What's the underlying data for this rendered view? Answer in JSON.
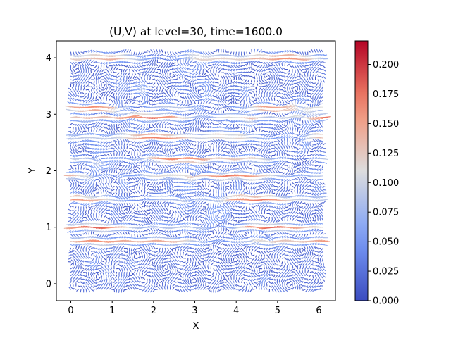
{
  "chart_data": {
    "type": "quiver",
    "title": "(U,V) at level=30, time=1600.0",
    "xlabel": "X",
    "ylabel": "Y",
    "xlim": [
      -0.35,
      6.4
    ],
    "ylim": [
      -0.3,
      4.3
    ],
    "xticks": [
      0,
      1,
      2,
      3,
      4,
      5,
      6
    ],
    "yticks": [
      0,
      1,
      2,
      3,
      4
    ],
    "grid": false,
    "field": {
      "x_range": [
        0,
        6.1
      ],
      "y_range": [
        -0.1,
        4.1
      ],
      "nx": 100,
      "ny": 70,
      "description_bands_y": [
        0.75,
        1.0,
        1.5,
        1.9,
        2.2,
        2.6,
        2.95,
        3.1,
        4.0
      ]
    },
    "colorbar": {
      "colormap": "coolwarm",
      "min": 0.0,
      "max": 0.22,
      "ticks": [
        0.0,
        0.025,
        0.05,
        0.075,
        0.1,
        0.125,
        0.15,
        0.175,
        0.2
      ],
      "tick_labels": [
        "0.000",
        "0.025",
        "0.050",
        "0.075",
        "0.100",
        "0.125",
        "0.150",
        "0.175",
        "0.200"
      ]
    }
  }
}
